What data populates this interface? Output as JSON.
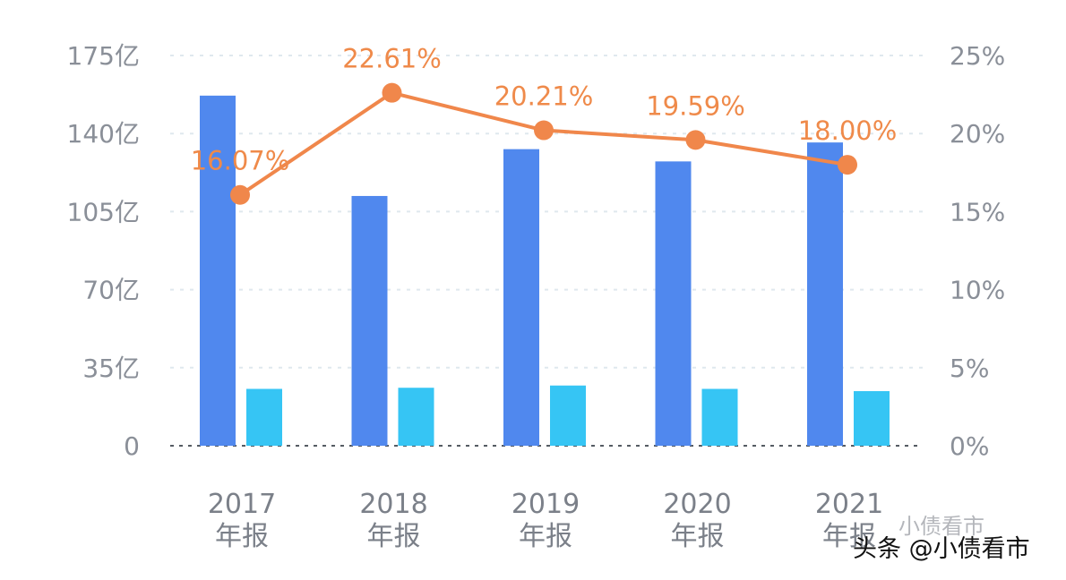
{
  "chart_data": {
    "type": "bar",
    "categories": [
      [
        "2017",
        "年报"
      ],
      [
        "2018",
        "年报"
      ],
      [
        "2019",
        "年报"
      ],
      [
        "2020",
        "年报"
      ],
      [
        "2021",
        "年报"
      ]
    ],
    "series": [
      {
        "name": "series-a",
        "type": "bar",
        "axis": "left",
        "color": "#5088ee",
        "values": [
          157,
          112,
          133,
          127.5,
          136
        ]
      },
      {
        "name": "series-b",
        "type": "bar",
        "axis": "left",
        "color": "#36c5f4",
        "values": [
          25.5,
          26,
          27,
          25.5,
          24.5
        ]
      },
      {
        "name": "series-c",
        "type": "line",
        "axis": "right",
        "color": "#f0874b",
        "values": [
          16.07,
          22.61,
          20.21,
          19.59,
          18.0
        ],
        "labels": [
          "16.07%",
          "22.61%",
          "20.21%",
          "19.59%",
          "18.00%"
        ]
      }
    ],
    "left_axis": {
      "ylim": [
        0,
        175
      ],
      "ticks": [
        0,
        35,
        70,
        105,
        140,
        175
      ],
      "tick_labels": [
        "0",
        "35亿",
        "70亿",
        "105亿",
        "140亿",
        "175亿"
      ]
    },
    "right_axis": {
      "ylim": [
        0,
        25
      ],
      "ticks": [
        0,
        5,
        10,
        15,
        20,
        25
      ],
      "tick_labels": [
        "0%",
        "5%",
        "10%",
        "15%",
        "20%",
        "25%"
      ]
    },
    "grid": true,
    "title": "",
    "xlabel": "",
    "ylabel": ""
  },
  "watermark": {
    "text": "头条 @小债看市",
    "ghost_text": "小债看市"
  }
}
